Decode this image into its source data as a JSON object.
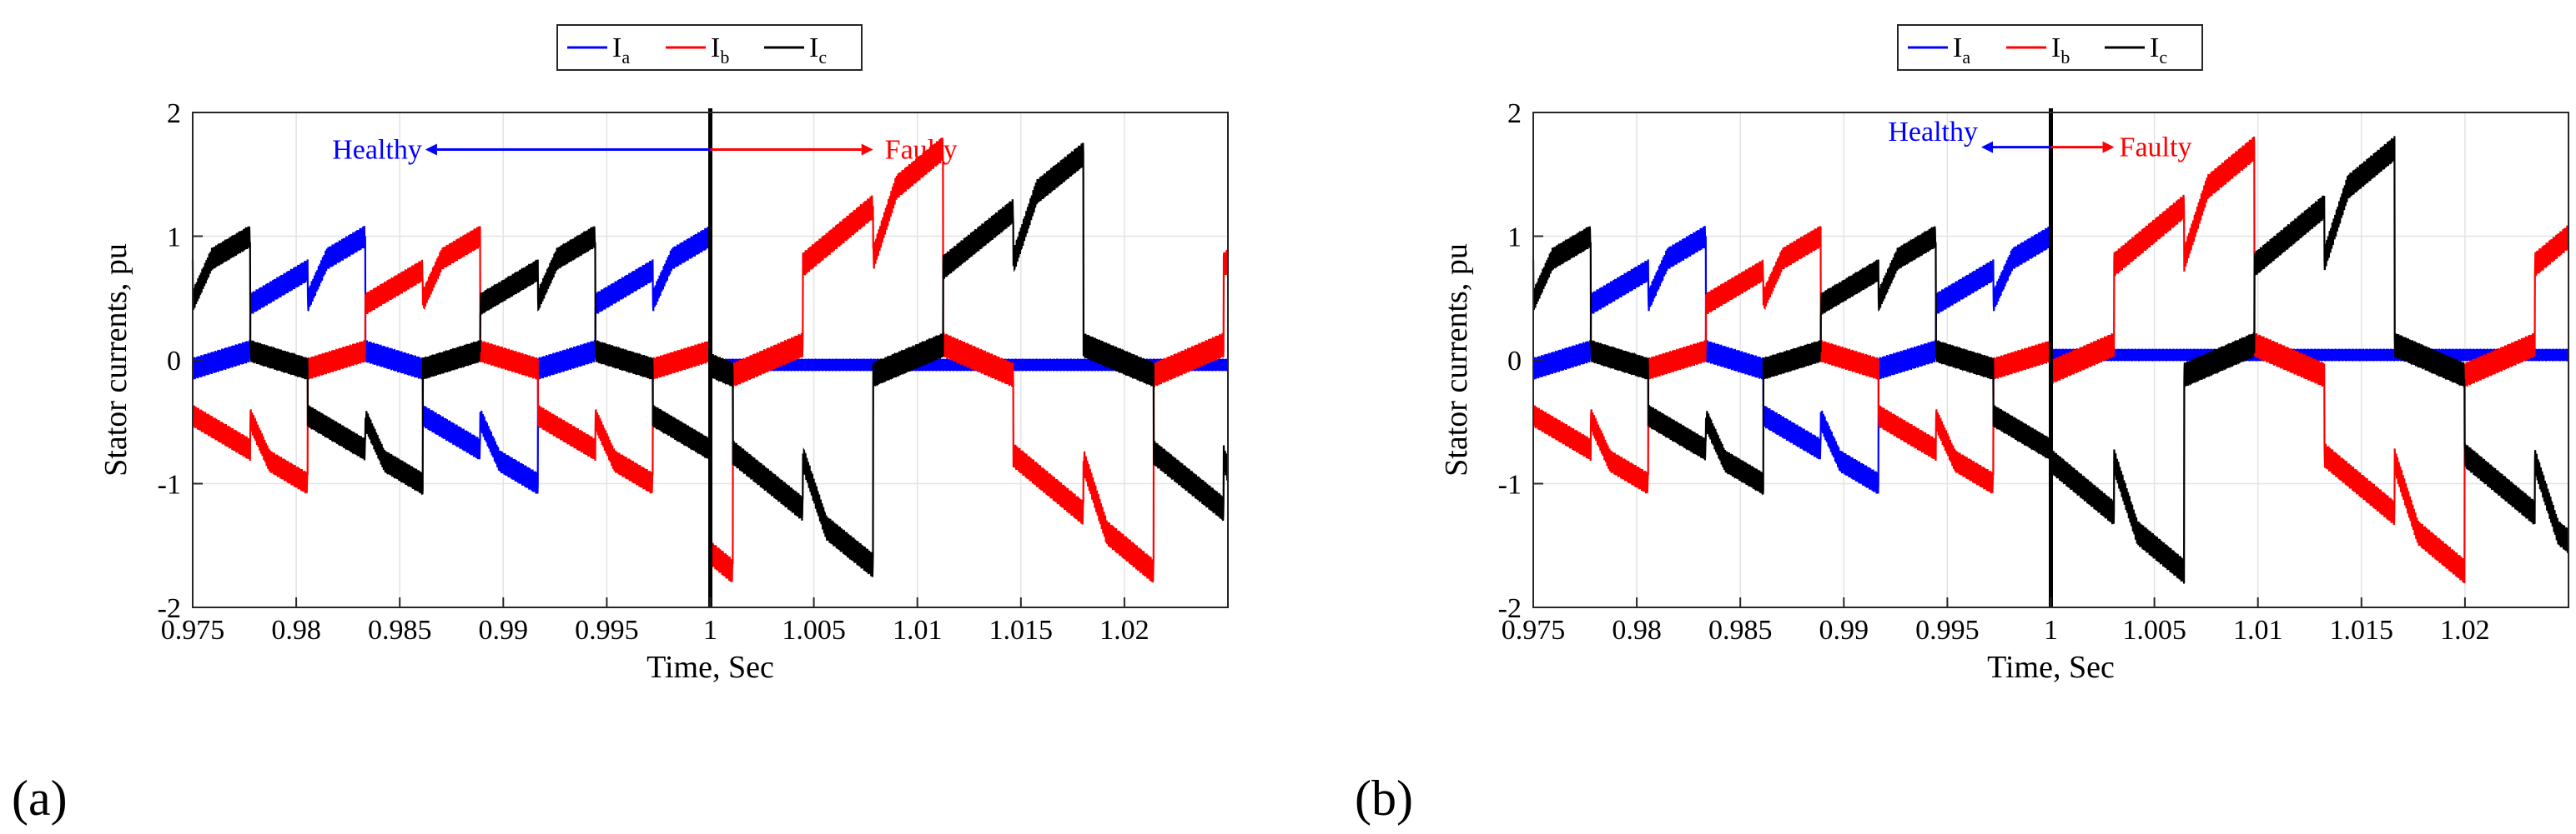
{
  "figure": {
    "panels": [
      "(a)",
      "(b)"
    ]
  },
  "chart_data": [
    {
      "type": "line",
      "panel_label": "(a)",
      "title": "",
      "xlabel": "Time, Sec",
      "ylabel": "Stator currents, pu",
      "xlim": [
        0.975,
        1.025
      ],
      "ylim": [
        -2,
        2
      ],
      "xticks": [
        0.975,
        0.98,
        0.985,
        0.99,
        0.995,
        1,
        1.005,
        1.01,
        1.015,
        1.02
      ],
      "yticks": [
        -2,
        -1,
        0,
        1,
        2
      ],
      "grid": true,
      "legend": {
        "position": "top-center",
        "entries": [
          {
            "base": "I",
            "sub": "a",
            "color": "#0000ff"
          },
          {
            "base": "I",
            "sub": "b",
            "color": "#ff0000"
          },
          {
            "base": "I",
            "sub": "c",
            "color": "#000000"
          }
        ]
      },
      "event_time": 1.0,
      "annotations": {
        "healthy": "Healthy",
        "faulty": "Faulty"
      },
      "waveform": {
        "freq_hz": 60,
        "healthy_amp": 1.0,
        "fault_amp_b": 1.8,
        "fault_amp_c": 1.75,
        "faulted_phase": "a"
      },
      "series": [
        {
          "name": "Ia",
          "color": "#0000ff"
        },
        {
          "name": "Ib",
          "color": "#ff0000"
        },
        {
          "name": "Ic",
          "color": "#000000"
        }
      ]
    },
    {
      "type": "line",
      "panel_label": "(b)",
      "title": "",
      "xlabel": "Time, Sec",
      "ylabel": "Stator currents, pu",
      "xlim": [
        0.975,
        1.025
      ],
      "ylim": [
        -2,
        2
      ],
      "xticks": [
        0.975,
        0.98,
        0.985,
        0.99,
        0.995,
        1,
        1.005,
        1.01,
        1.015,
        1.02
      ],
      "yticks": [
        -2,
        -1,
        0,
        1,
        2
      ],
      "grid": true,
      "legend": {
        "position": "top-center",
        "entries": [
          {
            "base": "I",
            "sub": "a",
            "color": "#0000ff"
          },
          {
            "base": "I",
            "sub": "b",
            "color": "#ff0000"
          },
          {
            "base": "I",
            "sub": "c",
            "color": "#000000"
          }
        ]
      },
      "event_time": 1.0,
      "annotations": {
        "healthy": "Healthy",
        "faulty": "Faulty"
      },
      "waveform": {
        "freq_hz": 60,
        "healthy_amp": 1.0,
        "fault_amp_b": 1.8,
        "fault_amp_c": 1.8,
        "faulted_phase": "a"
      },
      "series": [
        {
          "name": "Ia",
          "color": "#0000ff"
        },
        {
          "name": "Ib",
          "color": "#ff0000"
        },
        {
          "name": "Ic",
          "color": "#000000"
        }
      ]
    }
  ]
}
